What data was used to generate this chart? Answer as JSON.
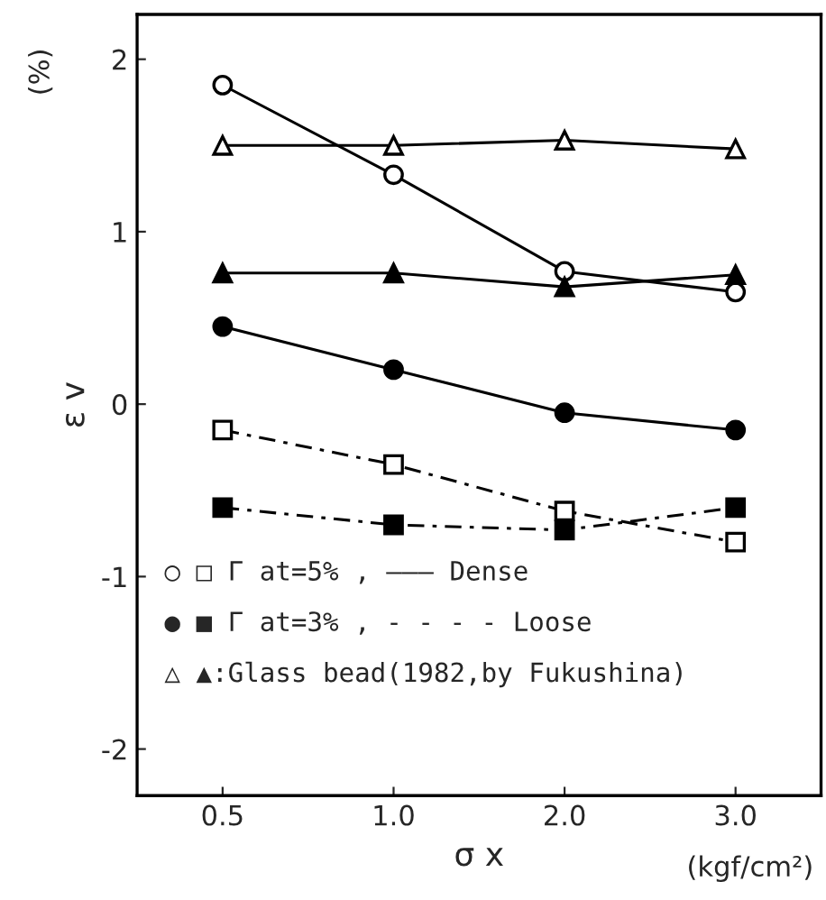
{
  "chart_data": {
    "type": "line",
    "xlabel": "σ x",
    "ylabel": "ε v",
    "categories": [
      "0.5",
      "1.0",
      "2.0",
      "3.0"
    ],
    "series": [
      {
        "color": "#000000",
        "values": [
          1.85,
          1.33,
          0.77,
          0.65
        ],
        "marker": "circle",
        "colors": [
          "#ffffff",
          "#ffffff",
          "#ffffff",
          "#ffffff"
        ],
        "line_style": "solid"
      },
      {
        "color": "#000000",
        "values": [
          -0.15,
          -0.35,
          -0.62,
          -0.8
        ],
        "marker": "square",
        "colors": [
          "#ffffff",
          "#ffffff",
          "#ffffff",
          "#ffffff"
        ],
        "line_style": "dashed"
      },
      {
        "color": "#000000",
        "values": [
          0.45,
          0.2,
          -0.05,
          -0.15
        ],
        "marker": "circle",
        "line_style": "solid"
      },
      {
        "color": "#000000",
        "values": [
          -0.6,
          -0.7,
          -0.73,
          -0.6
        ],
        "marker": "square",
        "line_style": "dashed"
      },
      {
        "color": "#000000",
        "values": [
          1.5,
          1.5,
          1.53,
          1.48
        ],
        "marker": "triangle",
        "colors": [
          "#ffffff",
          "#ffffff",
          "#ffffff",
          "#ffffff"
        ],
        "line_style": "solid"
      },
      {
        "color": "#000000",
        "values": [
          0.76,
          0.76,
          0.68,
          0.75
        ],
        "marker": "triangle",
        "line_style": "solid"
      }
    ],
    "ylim": [
      -2.27,
      2.26
    ],
    "yticks": [
      -2,
      -1,
      0,
      1,
      2
    ],
    "grid": false,
    "legend": false,
    "annotations": [
      "○ □ Γ at=5% , ——— Dense",
      "● ■ Γ at=3% , - - - - Loose",
      "△ ▲:Glass bead(1982,by Fukushina)",
      "(%)",
      "(kgf/cm²)"
    ]
  }
}
